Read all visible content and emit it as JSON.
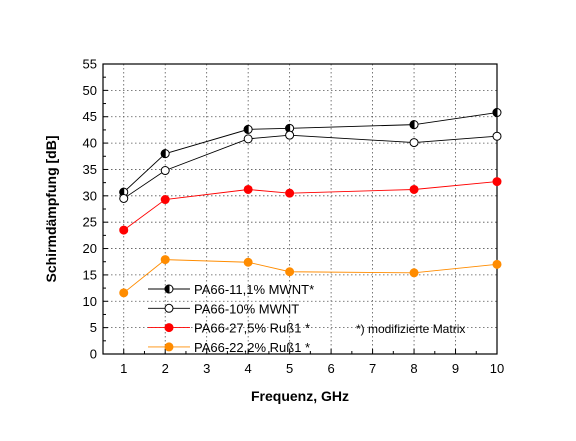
{
  "chart_data": {
    "type": "line",
    "xlabel": "Frequenz, GHz",
    "ylabel": "Schirmdämpfung [dB]",
    "xlim": [
      0.5,
      10
    ],
    "ylim": [
      0,
      55
    ],
    "xticks": [
      1,
      2,
      3,
      4,
      5,
      6,
      7,
      8,
      9,
      10
    ],
    "yticks": [
      0,
      5,
      10,
      15,
      20,
      25,
      30,
      35,
      40,
      45,
      50,
      55
    ],
    "grid": true,
    "grid_style": "dotted",
    "legend_position": "bottom-left",
    "annotation": "*) modifizierte Matrix",
    "series": [
      {
        "name": "PA66-11,1% MWNT*",
        "marker": "half-filled-circle",
        "color": "#000000",
        "x": [
          1,
          2,
          4,
          5,
          8,
          10
        ],
        "y": [
          30.7,
          38.0,
          42.6,
          42.8,
          43.5,
          45.8
        ]
      },
      {
        "name": "PA66-10% MWNT",
        "marker": "open-circle",
        "color": "#000000",
        "x": [
          1,
          2,
          4,
          5,
          8,
          10
        ],
        "y": [
          29.5,
          34.8,
          40.8,
          41.5,
          40.1,
          41.3
        ]
      },
      {
        "name": "PA66-27,5% Ruß1 *",
        "marker": "filled-circle",
        "color": "#ff0000",
        "x": [
          1,
          2,
          4,
          5,
          8,
          10
        ],
        "y": [
          23.5,
          29.3,
          31.2,
          30.5,
          31.2,
          32.7
        ]
      },
      {
        "name": "PA66-22,2% Ruß1 *",
        "marker": "filled-circle",
        "color": "#ff8c00",
        "x": [
          1,
          2,
          4,
          5,
          8,
          10
        ],
        "y": [
          11.6,
          17.9,
          17.4,
          15.6,
          15.4,
          17.0
        ]
      }
    ]
  }
}
